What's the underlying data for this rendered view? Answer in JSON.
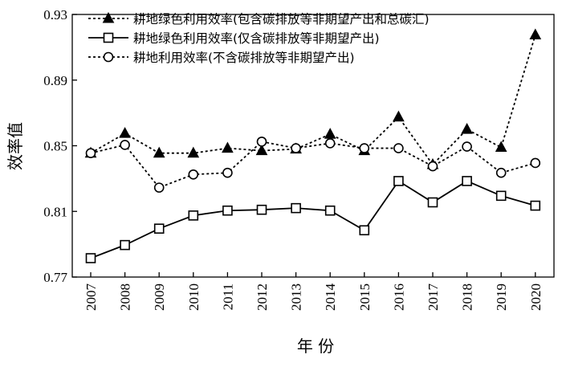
{
  "chart_data": {
    "type": "line",
    "title": "",
    "xlabel": "年 份",
    "ylabel": "效率值",
    "categories": [
      "2007",
      "2008",
      "2009",
      "2010",
      "2011",
      "2012",
      "2013",
      "2014",
      "2015",
      "2016",
      "2017",
      "2018",
      "2019",
      "2020"
    ],
    "ylim": [
      0.77,
      0.93
    ],
    "yticks": [
      "0.77",
      "0.81",
      "0.85",
      "0.89",
      "0.93"
    ],
    "grid": false,
    "legend_position": "top-left",
    "series": [
      {
        "name": "耕地绿色利用效率(包含碳排放等非期望产出和总碳汇)",
        "marker": "triangle-filled",
        "line": "dotted",
        "values": [
          0.8455,
          0.8575,
          0.8455,
          0.8455,
          0.8485,
          0.847,
          0.848,
          0.857,
          0.847,
          0.8675,
          0.8385,
          0.86,
          0.849,
          0.9175
        ]
      },
      {
        "name": "耕地绿色利用效率(仅含碳排放等非期望产出)",
        "marker": "square-open",
        "line": "solid",
        "values": [
          0.7815,
          0.7895,
          0.7995,
          0.8075,
          0.8105,
          0.811,
          0.812,
          0.8105,
          0.7985,
          0.8285,
          0.8155,
          0.8285,
          0.8195,
          0.8135
        ]
      },
      {
        "name": "耕地利用效率(不含碳排放等非期望产出)",
        "marker": "circle-open",
        "line": "dotted",
        "values": [
          0.8455,
          0.8505,
          0.8245,
          0.8325,
          0.8335,
          0.8525,
          0.8485,
          0.8515,
          0.8485,
          0.8485,
          0.8375,
          0.8495,
          0.8335,
          0.8395
        ]
      }
    ]
  }
}
